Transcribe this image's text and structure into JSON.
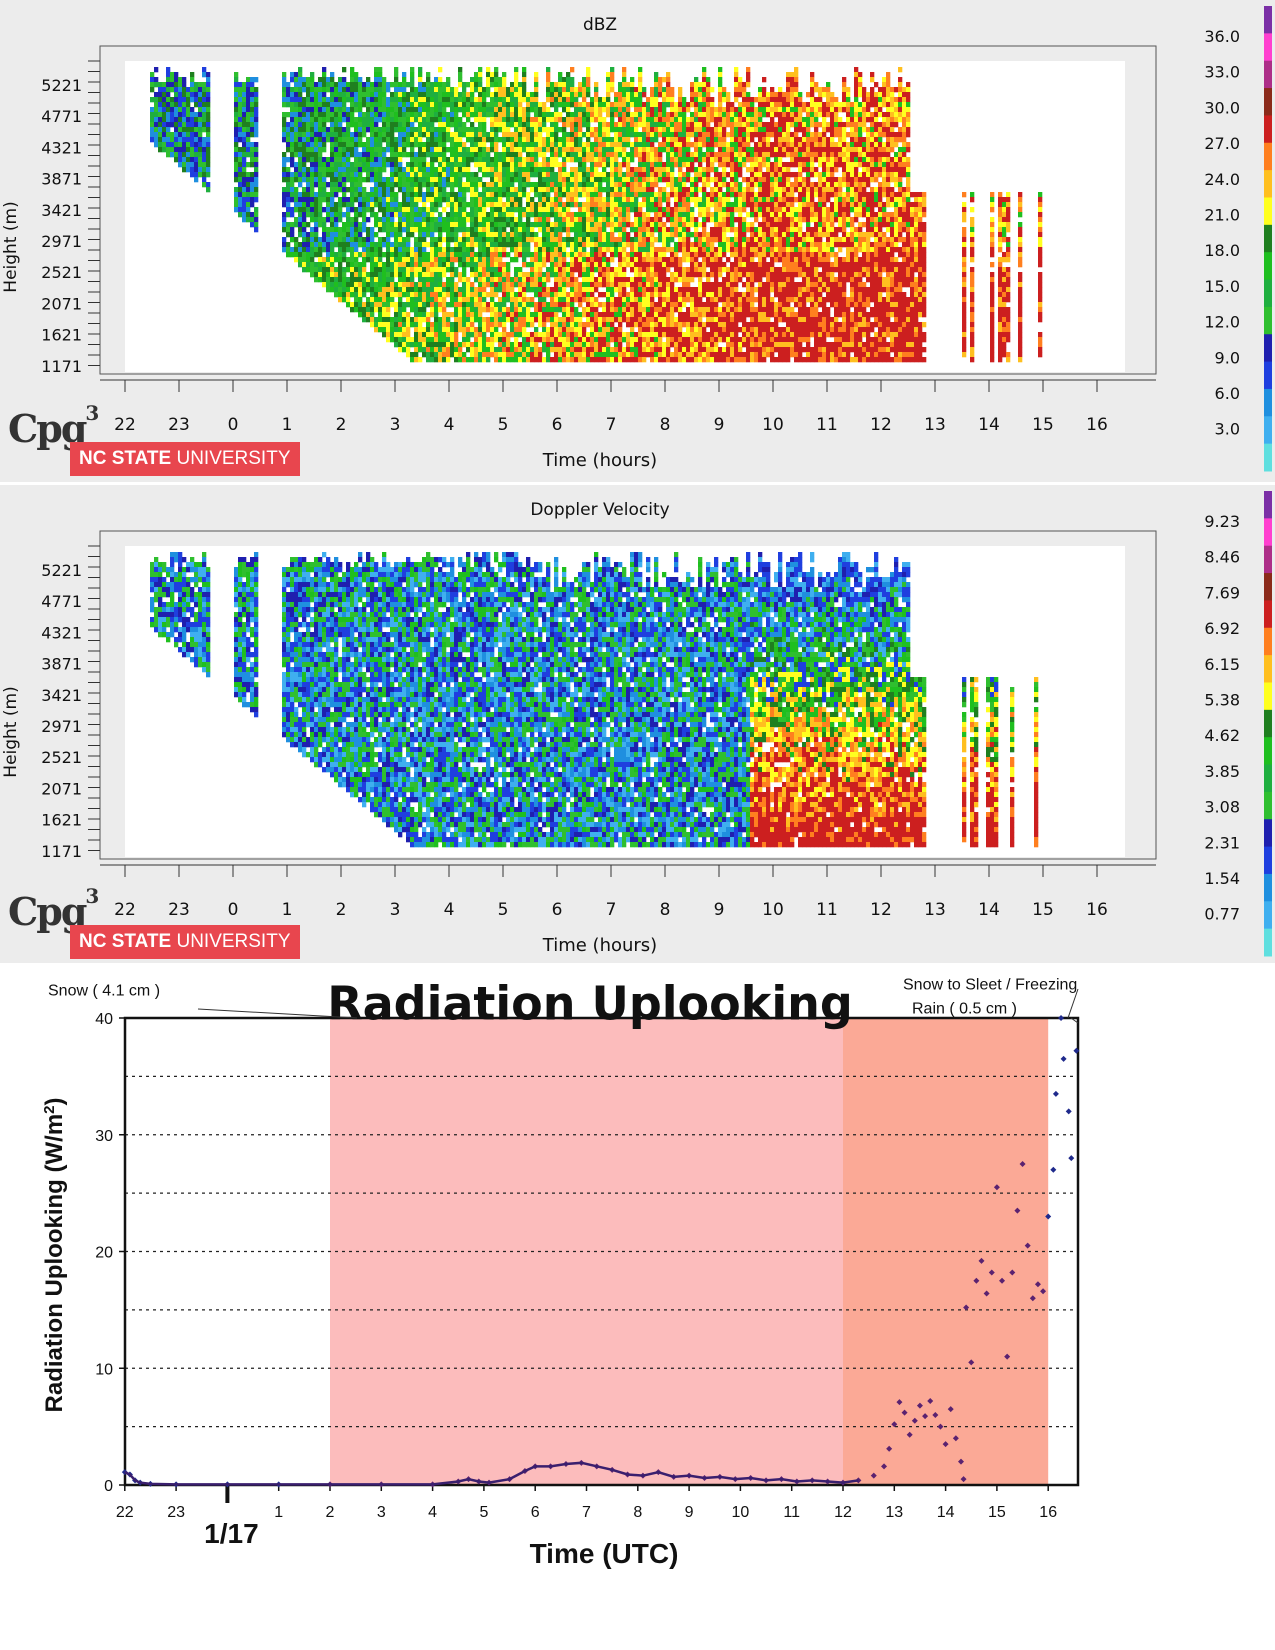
{
  "branding": {
    "logo_text": "Cpg",
    "logo_super": "3",
    "university_bold": "NC STATE",
    "university_rest": "UNIVERSITY"
  },
  "chart_data": [
    {
      "type": "heatmap",
      "title": "dBZ",
      "xlabel": "Time (hours)",
      "ylabel": "Height (m)",
      "x_ticks": [
        "22",
        "23",
        "0",
        "1",
        "2",
        "3",
        "4",
        "5",
        "6",
        "7",
        "8",
        "9",
        "10",
        "11",
        "12",
        "13",
        "14",
        "15",
        "16"
      ],
      "y_ticks": [
        "5221",
        "4771",
        "4321",
        "3871",
        "3421",
        "2971",
        "2521",
        "2071",
        "1621",
        "1171"
      ],
      "colorbar_labels": [
        "36.0",
        "33.0",
        "30.0",
        "27.0",
        "24.0",
        "21.0",
        "18.0",
        "15.0",
        "12.0",
        "9.0",
        "6.0",
        "3.0"
      ],
      "colorbar_colors": [
        "#7b2fa6",
        "#ff3fcf",
        "#ad2e88",
        "#8b2a1a",
        "#cc1f1f",
        "#ff7f1f",
        "#ffbf1f",
        "#ffff1f",
        "#1f7f1f",
        "#1fbf1f",
        "#1faf3f",
        "#2fbf2f",
        "#1f1faf",
        "#1f3fdf",
        "#1f8fdf",
        "#3fafef",
        "#5fdfdf"
      ],
      "value_range": [
        0,
        36
      ]
    },
    {
      "type": "heatmap",
      "title": "Doppler Velocity",
      "xlabel": "Time (hours)",
      "ylabel": "Height (m)",
      "x_ticks": [
        "22",
        "23",
        "0",
        "1",
        "2",
        "3",
        "4",
        "5",
        "6",
        "7",
        "8",
        "9",
        "10",
        "11",
        "12",
        "13",
        "14",
        "15",
        "16"
      ],
      "y_ticks": [
        "5221",
        "4771",
        "4321",
        "3871",
        "3421",
        "2971",
        "2521",
        "2071",
        "1621",
        "1171"
      ],
      "colorbar_labels": [
        "9.23",
        "8.46",
        "7.69",
        "6.92",
        "6.15",
        "5.38",
        "4.62",
        "3.85",
        "3.08",
        "2.31",
        "1.54",
        "0.77"
      ],
      "colorbar_colors": [
        "#7b2fa6",
        "#ff3fcf",
        "#ad2e88",
        "#8b2a1a",
        "#cc1f1f",
        "#ff7f1f",
        "#ffbf1f",
        "#ffff1f",
        "#1f7f1f",
        "#1fbf1f",
        "#1faf3f",
        "#2fbf2f",
        "#1f1faf",
        "#1f3fdf",
        "#1f8fdf",
        "#3fafef",
        "#5fdfdf"
      ],
      "value_range": [
        0,
        9.23
      ]
    },
    {
      "type": "scatter",
      "title": "Radiation Uplooking",
      "xlabel": "Time (UTC)",
      "ylabel": "Radiation Uplooking (W/m",
      "ylabel_sup": "2",
      "ylabel_end": ")",
      "ylim": [
        0,
        40
      ],
      "y_ticks": [
        0,
        10,
        20,
        30,
        40
      ],
      "grid_lines": [
        5,
        10,
        15,
        20,
        25,
        30,
        35
      ],
      "x_ticks": [
        "22",
        "23",
        "1",
        "2",
        "3",
        "4",
        "5",
        "6",
        "7",
        "8",
        "9",
        "10",
        "11",
        "12",
        "13",
        "14",
        "15",
        "16"
      ],
      "date_marker": "1/17",
      "annotations": {
        "snow": "Snow ( 4.1 cm )",
        "sleet_line1": "Snow to Sleet / Freezing",
        "sleet_line2": "Rain ( 0.5 cm )"
      },
      "shaded_regions": [
        {
          "label": "Snow ( 4.1 cm )",
          "x_start": 2,
          "x_end": 12,
          "color": "#fcbcbc"
        },
        {
          "label": "Snow to Sleet / Freezing Rain ( 0.5 cm )",
          "x_start": 12,
          "x_end": 16,
          "color": "#fba996"
        }
      ],
      "series_colors": {
        "early": "#1f2a8c",
        "snow": "#5a2270",
        "late": "#1f2a8c"
      },
      "points": [
        [
          -2.0,
          1.1
        ],
        [
          -1.9,
          0.9
        ],
        [
          -1.8,
          0.4
        ],
        [
          -1.7,
          0.2
        ],
        [
          -1.5,
          0.1
        ],
        [
          -1.0,
          0.05
        ],
        [
          0,
          0.05
        ],
        [
          1,
          0.05
        ],
        [
          2,
          0.05
        ],
        [
          3,
          0.05
        ],
        [
          4,
          0.05
        ],
        [
          4.5,
          0.3
        ],
        [
          4.7,
          0.5
        ],
        [
          4.9,
          0.3
        ],
        [
          5.1,
          0.2
        ],
        [
          5.5,
          0.5
        ],
        [
          5.8,
          1.2
        ],
        [
          6.0,
          1.6
        ],
        [
          6.3,
          1.6
        ],
        [
          6.6,
          1.8
        ],
        [
          6.9,
          1.9
        ],
        [
          7.2,
          1.6
        ],
        [
          7.5,
          1.3
        ],
        [
          7.8,
          0.9
        ],
        [
          8.1,
          0.8
        ],
        [
          8.4,
          1.1
        ],
        [
          8.7,
          0.7
        ],
        [
          9.0,
          0.8
        ],
        [
          9.3,
          0.6
        ],
        [
          9.6,
          0.7
        ],
        [
          9.9,
          0.5
        ],
        [
          10.2,
          0.6
        ],
        [
          10.5,
          0.4
        ],
        [
          10.8,
          0.5
        ],
        [
          11.1,
          0.3
        ],
        [
          11.4,
          0.4
        ],
        [
          11.7,
          0.3
        ],
        [
          12.0,
          0.2
        ],
        [
          12.3,
          0.4
        ],
        [
          12.6,
          0.8
        ],
        [
          12.8,
          1.6
        ],
        [
          12.9,
          3.1
        ],
        [
          13.0,
          5.2
        ],
        [
          13.1,
          7.1
        ],
        [
          13.2,
          6.2
        ],
        [
          13.3,
          4.3
        ],
        [
          13.4,
          5.5
        ],
        [
          13.5,
          6.8
        ],
        [
          13.6,
          5.9
        ],
        [
          13.7,
          7.2
        ],
        [
          13.8,
          6.0
        ],
        [
          13.9,
          5.0
        ],
        [
          14.0,
          3.5
        ],
        [
          14.1,
          6.5
        ],
        [
          14.2,
          4.0
        ],
        [
          14.3,
          2.0
        ],
        [
          14.35,
          0.5
        ],
        [
          14.4,
          15.2
        ],
        [
          14.5,
          10.5
        ],
        [
          14.6,
          17.5
        ],
        [
          14.7,
          19.2
        ],
        [
          14.8,
          16.4
        ],
        [
          14.9,
          18.2
        ],
        [
          15.0,
          25.5
        ],
        [
          15.1,
          17.5
        ],
        [
          15.2,
          11.0
        ],
        [
          15.3,
          18.2
        ],
        [
          15.4,
          23.5
        ],
        [
          15.5,
          27.5
        ],
        [
          15.6,
          20.5
        ],
        [
          15.7,
          16.0
        ],
        [
          15.8,
          17.2
        ],
        [
          15.9,
          16.6
        ],
        [
          16.0,
          23.0
        ],
        [
          16.1,
          27.0
        ],
        [
          16.15,
          33.5
        ],
        [
          16.25,
          40.0
        ],
        [
          16.3,
          36.5
        ],
        [
          16.4,
          32.0
        ],
        [
          16.45,
          28.0
        ],
        [
          16.55,
          37.2
        ]
      ]
    }
  ]
}
